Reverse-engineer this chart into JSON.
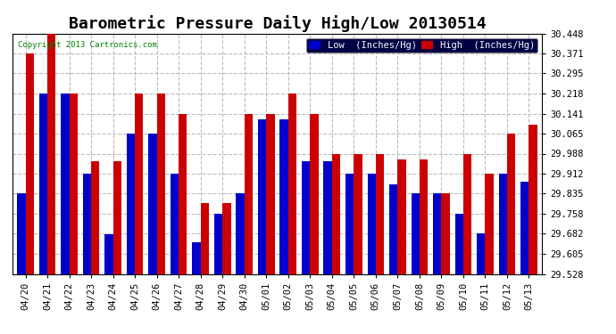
{
  "title": "Barometric Pressure Daily High/Low 20130514",
  "copyright": "Copyright 2013 Cartronics.com",
  "legend_low": "Low  (Inches/Hg)",
  "legend_high": "High  (Inches/Hg)",
  "dates": [
    "04/20",
    "04/21",
    "04/22",
    "04/23",
    "04/24",
    "04/25",
    "04/26",
    "04/27",
    "04/28",
    "04/29",
    "04/30",
    "05/01",
    "05/02",
    "05/03",
    "05/04",
    "05/05",
    "05/06",
    "05/07",
    "05/08",
    "05/09",
    "05/10",
    "05/11",
    "05/12",
    "05/13"
  ],
  "high_values": [
    30.371,
    30.448,
    30.218,
    29.958,
    29.958,
    30.218,
    30.218,
    30.141,
    29.8,
    29.8,
    30.141,
    30.141,
    30.218,
    30.141,
    29.988,
    29.988,
    29.988,
    29.965,
    29.965,
    29.835,
    29.988,
    29.912,
    30.065,
    30.1
  ],
  "low_values": [
    29.835,
    30.218,
    30.218,
    29.912,
    29.68,
    30.065,
    30.065,
    29.912,
    29.65,
    29.758,
    29.835,
    30.12,
    30.12,
    29.958,
    29.958,
    29.912,
    29.912,
    29.87,
    29.835,
    29.835,
    29.758,
    29.682,
    29.912,
    29.88
  ],
  "low_color": "#0000cc",
  "high_color": "#cc0000",
  "bg_color": "#ffffff",
  "plot_bg_color": "#ffffff",
  "grid_color": "#bbbbbb",
  "ylim_min": 29.528,
  "ylim_max": 30.448,
  "yticks": [
    29.528,
    29.605,
    29.682,
    29.758,
    29.835,
    29.912,
    29.988,
    30.065,
    30.141,
    30.218,
    30.295,
    30.371,
    30.448
  ],
  "title_fontsize": 13,
  "tick_fontsize": 7.5,
  "legend_fontsize": 7.5,
  "copyright_fontsize": 6.5
}
